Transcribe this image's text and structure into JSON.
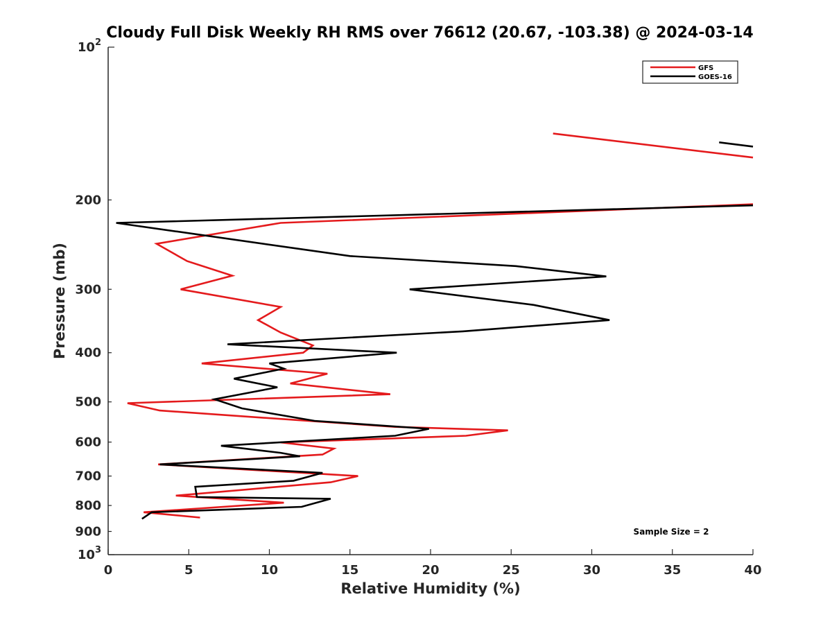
{
  "chart_data": {
    "type": "line",
    "title": "Cloudy Full Disk Weekly RH RMS over 76612 (20.67, -103.38) @ 2024-03-14",
    "xlabel": "Relative Humidity (%)",
    "ylabel": "Pressure (mb)",
    "xlim": [
      0,
      40
    ],
    "ylim": [
      100,
      1000
    ],
    "yscale": "log",
    "y_reversed": true,
    "x_ticks": [
      "0",
      "5",
      "10",
      "15",
      "20",
      "25",
      "30",
      "35",
      "40"
    ],
    "x_tick_values": [
      0,
      5,
      10,
      15,
      20,
      25,
      30,
      35,
      40
    ],
    "y_ticks": [
      {
        "value": 100,
        "label": "10",
        "sup": "2"
      },
      {
        "value": 200,
        "label": "200"
      },
      {
        "value": 300,
        "label": "300"
      },
      {
        "value": 400,
        "label": "400"
      },
      {
        "value": 500,
        "label": "500"
      },
      {
        "value": 600,
        "label": "600"
      },
      {
        "value": 700,
        "label": "700"
      },
      {
        "value": 800,
        "label": "800"
      },
      {
        "value": 900,
        "label": "900"
      },
      {
        "value": 1000,
        "label": "10",
        "sup": "3"
      }
    ],
    "legend_position": "top-right",
    "annotation": "Sample Size = 2",
    "series": [
      {
        "name": "GFS",
        "color": "#e41a1c",
        "segments": [
          [
            [
              27.6,
              148
            ],
            [
              40,
              165
            ]
          ],
          [
            [
              40,
              204
            ],
            [
              10.7,
              222
            ],
            [
              3.0,
              244
            ],
            [
              4.9,
              264
            ],
            [
              7.7,
              282
            ],
            [
              4.5,
              300
            ],
            [
              10.7,
              325
            ],
            [
              9.3,
              345
            ],
            [
              10.7,
              365
            ],
            [
              12.7,
              387
            ],
            [
              12.1,
              400
            ],
            [
              5.8,
              420
            ],
            [
              13.6,
              440
            ],
            [
              11.3,
              460
            ],
            [
              17.5,
              483
            ],
            [
              1.2,
              503
            ],
            [
              3.2,
              520
            ],
            [
              17.8,
              560
            ],
            [
              24.8,
              569
            ],
            [
              22.2,
              583
            ],
            [
              10.7,
              601
            ],
            [
              14.0,
              618
            ],
            [
              13.3,
              635
            ],
            [
              3.1,
              664
            ],
            [
              15.5,
              700
            ],
            [
              13.8,
              720
            ],
            [
              4.2,
              765
            ],
            [
              10.9,
              790
            ],
            [
              2.2,
              825
            ],
            [
              5.7,
              845
            ]
          ]
        ]
      },
      {
        "name": "GOES-16",
        "color": "#000000",
        "segments": [
          [
            [
              37.9,
              154
            ],
            [
              40,
              157
            ]
          ],
          [
            [
              40,
              205
            ],
            [
              0.5,
              222
            ],
            [
              15.0,
              258
            ],
            [
              25.3,
              270
            ],
            [
              30.9,
              283
            ],
            [
              18.7,
              300
            ],
            [
              26.4,
              322
            ],
            [
              31.1,
              345
            ],
            [
              22.0,
              363
            ],
            [
              7.4,
              385
            ],
            [
              17.9,
              400
            ],
            [
              10.0,
              420
            ],
            [
              10.9,
              430
            ],
            [
              7.8,
              450
            ],
            [
              10.5,
              468
            ],
            [
              6.6,
              494
            ],
            [
              8.3,
              515
            ],
            [
              12.8,
              545
            ],
            [
              19.9,
              565
            ],
            [
              17.8,
              583
            ],
            [
              7.0,
              610
            ],
            [
              10.7,
              630
            ],
            [
              11.9,
              640
            ],
            [
              3.2,
              664
            ],
            [
              13.3,
              690
            ],
            [
              11.5,
              715
            ],
            [
              5.4,
              735
            ],
            [
              5.5,
              770
            ],
            [
              13.8,
              776
            ],
            [
              12.0,
              805
            ],
            [
              2.7,
              825
            ],
            [
              2.1,
              850
            ]
          ]
        ]
      }
    ]
  }
}
